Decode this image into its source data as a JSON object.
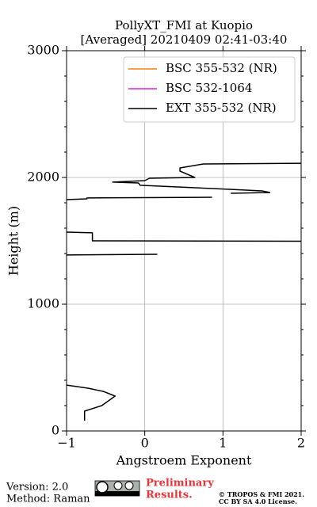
{
  "chart_data": {
    "type": "line",
    "title": "PollyXT_FMI at Kuopio",
    "subtitle": "[Averaged] 20210409 02:41-03:40",
    "x_label": "Angstroem Exponent",
    "y_label": "Height (m)",
    "xlim": [
      -1,
      2
    ],
    "xticks": [
      {
        "value": -1,
        "label": "−1"
      },
      0,
      1,
      2
    ],
    "ylim": [
      0,
      3000
    ],
    "yticks": [
      0,
      1000,
      2000,
      3000
    ],
    "yminorticks": [
      200,
      400,
      600,
      800,
      1200,
      1400,
      1600,
      1800,
      2200,
      2400,
      2600,
      2800
    ],
    "grid": true,
    "legend": "upper right",
    "y": [
      81,
      156,
      200,
      275,
      312,
      337,
      362,
      375,
      1388,
      1394,
      1400,
      1497,
      1500,
      1563,
      1569,
      1700,
      1825,
      1831,
      1838,
      1844,
      1860,
      1875,
      1881,
      1894,
      1906,
      1938,
      1956,
      1963,
      1975,
      1994,
      2000,
      2050,
      2075,
      2106,
      2112
    ],
    "series": [
      {
        "name": "BSC 355-532 (NR)",
        "color": "#ff7f0e",
        "values": [
          null,
          null,
          null,
          null,
          null,
          null,
          null,
          null,
          null,
          null,
          null,
          null,
          null,
          null,
          null,
          null,
          null,
          null,
          null,
          null,
          null,
          null,
          null,
          null,
          null,
          null,
          null,
          null,
          null,
          null,
          null,
          null,
          null,
          null,
          null
        ]
      },
      {
        "name": "BSC 532-1064",
        "color": "#e020e0",
        "values": [
          null,
          null,
          null,
          null,
          null,
          null,
          null,
          null,
          null,
          null,
          null,
          null,
          null,
          null,
          null,
          null,
          null,
          null,
          null,
          null,
          null,
          null,
          null,
          null,
          null,
          null,
          null,
          null,
          null,
          null,
          null,
          null,
          null,
          null,
          null
        ]
      },
      {
        "name": "EXT 355-532 (NR)",
        "color": "#000000",
        "values": [
          -0.77,
          -0.77,
          -0.55,
          -0.38,
          -0.53,
          -0.72,
          -1.0,
          null,
          -1.0,
          0.16,
          null,
          2.0,
          -0.67,
          -0.67,
          -1.0,
          null,
          -1.0,
          -0.74,
          -0.74,
          0.86,
          null,
          1.1,
          1.6,
          1.5,
          1.09,
          -0.06,
          -0.08,
          -0.41,
          0.0,
          0.06,
          0.64,
          0.45,
          0.45,
          0.75,
          2.0
        ]
      }
    ]
  },
  "footer": {
    "version": "Version: 2.0",
    "method": "Method: Raman",
    "notice_line1": "Preliminary",
    "notice_line2": "Results.",
    "copyright": "© TROPOS & FMI 2021.",
    "license": "CC BY SA 4.0 License."
  }
}
